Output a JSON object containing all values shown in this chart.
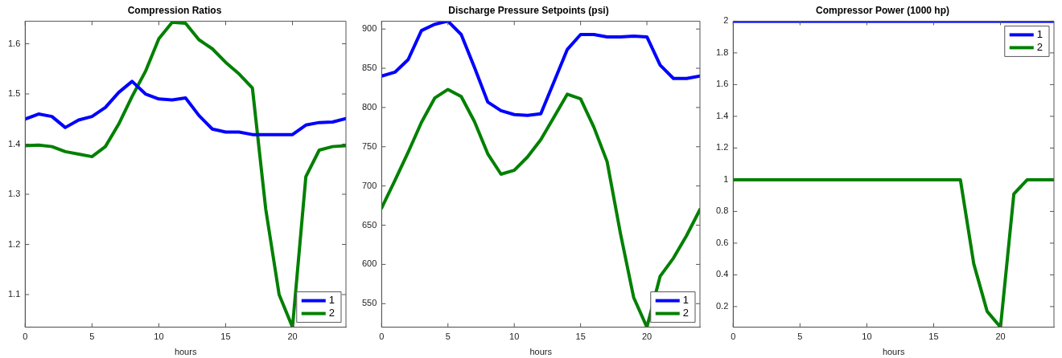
{
  "chart_data": [
    {
      "type": "line",
      "title": "Compression Ratios",
      "xlabel": "hours",
      "x": [
        0,
        1,
        2,
        3,
        4,
        5,
        6,
        7,
        8,
        9,
        10,
        11,
        12,
        13,
        14,
        15,
        16,
        17,
        18,
        19,
        20,
        21,
        22,
        23,
        24
      ],
      "xlim": [
        0,
        24
      ],
      "xticks": [
        0,
        5,
        10,
        15,
        20
      ],
      "ylim": [
        1.035,
        1.645
      ],
      "yticks": [
        1.1,
        1.2,
        1.3,
        1.4,
        1.5,
        1.6
      ],
      "grid": false,
      "legend": "bottom right",
      "marker": "none",
      "line_style": "solid",
      "series": [
        {
          "name": "1",
          "color": "#0000ff",
          "values": [
            1.45,
            1.46,
            1.455,
            1.433,
            1.448,
            1.455,
            1.473,
            1.503,
            1.525,
            1.5,
            1.49,
            1.488,
            1.492,
            1.457,
            1.43,
            1.424,
            1.424,
            1.419,
            1.419,
            1.419,
            1.419,
            1.438,
            1.443,
            1.444,
            1.451
          ]
        },
        {
          "name": "2",
          "color": "#008000",
          "values": [
            1.397,
            1.398,
            1.395,
            1.385,
            1.38,
            1.375,
            1.395,
            1.44,
            1.495,
            1.545,
            1.61,
            1.643,
            1.641,
            1.608,
            1.59,
            1.563,
            1.54,
            1.512,
            1.27,
            1.1,
            1.035,
            1.335,
            1.388,
            1.395,
            1.397
          ]
        }
      ]
    },
    {
      "type": "line",
      "title": "Discharge Pressure Setpoints (psi)",
      "xlabel": "hours",
      "x": [
        0,
        1,
        2,
        3,
        4,
        5,
        6,
        7,
        8,
        9,
        10,
        11,
        12,
        13,
        14,
        15,
        16,
        17,
        18,
        19,
        20,
        21,
        22,
        23,
        24
      ],
      "xlim": [
        0,
        24
      ],
      "xticks": [
        0,
        5,
        10,
        15,
        20
      ],
      "ylim": [
        520,
        910
      ],
      "yticks": [
        550,
        600,
        650,
        700,
        750,
        800,
        850,
        900
      ],
      "grid": false,
      "legend": "bottom right",
      "marker": "none",
      "line_style": "solid",
      "series": [
        {
          "name": "1",
          "color": "#0000ff",
          "values": [
            840,
            845,
            861,
            898,
            906,
            910,
            893,
            851,
            807,
            796,
            791,
            790,
            792,
            833,
            874,
            893,
            893,
            890,
            890,
            891,
            890,
            854,
            837,
            837,
            840
          ]
        },
        {
          "name": "2",
          "color": "#008000",
          "values": [
            672,
            707,
            743,
            781,
            812,
            823,
            814,
            782,
            741,
            715,
            720,
            737,
            759,
            788,
            817,
            811,
            775,
            731,
            640,
            558,
            520,
            585,
            608,
            637,
            670
          ]
        }
      ]
    },
    {
      "type": "line",
      "title": "Compressor Power (1000 hp)",
      "xlabel": "hours",
      "x": [
        0,
        1,
        2,
        3,
        4,
        5,
        6,
        7,
        8,
        9,
        10,
        11,
        12,
        13,
        14,
        15,
        16,
        17,
        18,
        19,
        20,
        21,
        22,
        23,
        24
      ],
      "xlim": [
        0,
        24
      ],
      "xticks": [
        0,
        5,
        10,
        15,
        20
      ],
      "ylim": [
        0.07,
        2
      ],
      "yticks": [
        0.2,
        0.4,
        0.6,
        0.8,
        1,
        1.2,
        1.4,
        1.6,
        1.8,
        2
      ],
      "grid": false,
      "legend": "top right",
      "marker": "none",
      "line_style": "solid",
      "series": [
        {
          "name": "1",
          "color": "#0000ff",
          "values": [
            2,
            2,
            2,
            2,
            2,
            2,
            2,
            2,
            2,
            2,
            2,
            2,
            2,
            2,
            2,
            2,
            2,
            2,
            2,
            2,
            2,
            2,
            2,
            2,
            2
          ]
        },
        {
          "name": "2",
          "color": "#008000",
          "values": [
            1,
            1,
            1,
            1,
            1,
            1,
            1,
            1,
            1,
            1,
            1,
            1,
            1,
            1,
            1,
            1,
            1,
            1,
            0.47,
            0.17,
            0.07,
            0.91,
            1,
            1,
            1
          ]
        }
      ]
    }
  ]
}
